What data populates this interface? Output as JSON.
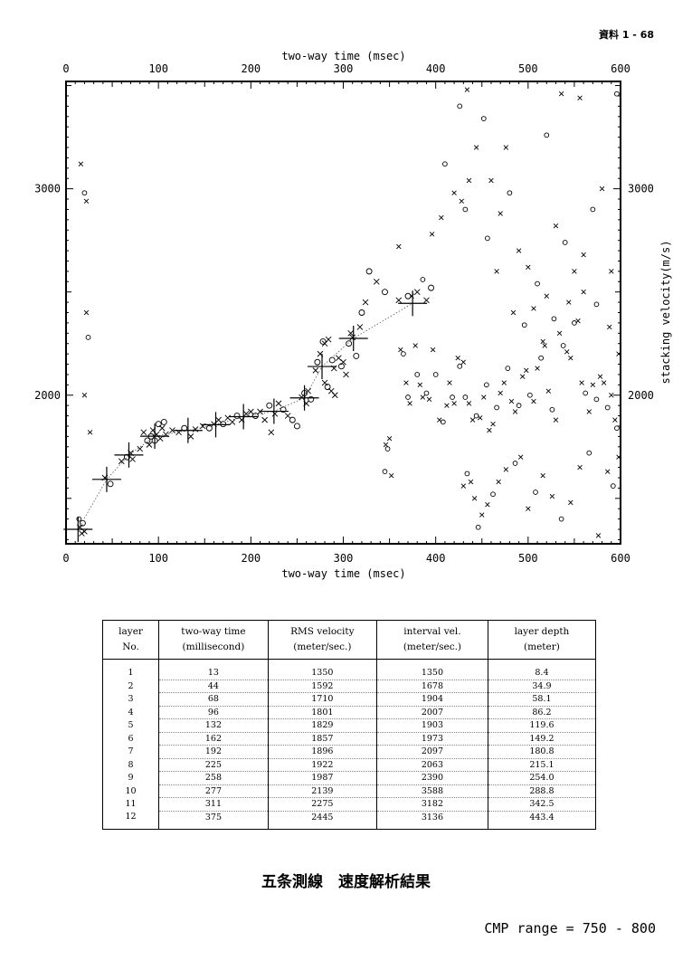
{
  "page_ref": "資料 1 - 68",
  "chart_data": {
    "type": "scatter",
    "top_xlabel": "two-way time (msec)",
    "xlabel": "two-way time (msec)",
    "ylabel": "stacking velocity(m/s)",
    "xlim": [
      0,
      600
    ],
    "ylim": [
      1280,
      3520
    ],
    "xticks": [
      0,
      100,
      200,
      300,
      400,
      500,
      600
    ],
    "yticks": [
      2000,
      3000
    ],
    "picks": [
      [
        13,
        1350
      ],
      [
        44,
        1592
      ],
      [
        68,
        1710
      ],
      [
        96,
        1801
      ],
      [
        132,
        1829
      ],
      [
        162,
        1857
      ],
      [
        192,
        1896
      ],
      [
        225,
        1922
      ],
      [
        258,
        1987
      ],
      [
        277,
        2139
      ],
      [
        311,
        2275
      ],
      [
        375,
        2445
      ]
    ],
    "main_trend_points": [
      [
        15,
        1360,
        "x"
      ],
      [
        17,
        1330,
        "x"
      ],
      [
        18,
        1380,
        "o"
      ],
      [
        20,
        1340,
        "x"
      ],
      [
        42,
        1600,
        "x"
      ],
      [
        48,
        1570,
        "o"
      ],
      [
        60,
        1680,
        "x"
      ],
      [
        66,
        1700,
        "o"
      ],
      [
        70,
        1720,
        "x"
      ],
      [
        72,
        1690,
        "x"
      ],
      [
        80,
        1740,
        "x"
      ],
      [
        84,
        1820,
        "x"
      ],
      [
        88,
        1780,
        "o"
      ],
      [
        90,
        1760,
        "x"
      ],
      [
        92,
        1800,
        "o"
      ],
      [
        94,
        1830,
        "x"
      ],
      [
        96,
        1780,
        "o"
      ],
      [
        98,
        1810,
        "x"
      ],
      [
        100,
        1860,
        "o"
      ],
      [
        102,
        1790,
        "x"
      ],
      [
        104,
        1840,
        "x"
      ],
      [
        106,
        1870,
        "o"
      ],
      [
        108,
        1810,
        "x"
      ],
      [
        115,
        1830,
        "x"
      ],
      [
        122,
        1820,
        "x"
      ],
      [
        128,
        1840,
        "o"
      ],
      [
        135,
        1800,
        "x"
      ],
      [
        140,
        1835,
        "x"
      ],
      [
        148,
        1850,
        "x"
      ],
      [
        155,
        1840,
        "o"
      ],
      [
        160,
        1860,
        "x"
      ],
      [
        165,
        1880,
        "x"
      ],
      [
        170,
        1860,
        "o"
      ],
      [
        175,
        1890,
        "x"
      ],
      [
        180,
        1870,
        "x"
      ],
      [
        185,
        1900,
        "o"
      ],
      [
        190,
        1880,
        "x"
      ],
      [
        195,
        1910,
        "x"
      ],
      [
        200,
        1920,
        "x"
      ],
      [
        205,
        1900,
        "o"
      ],
      [
        210,
        1920,
        "x"
      ],
      [
        215,
        1880,
        "x"
      ],
      [
        220,
        1950,
        "o"
      ],
      [
        222,
        1820,
        "x"
      ],
      [
        226,
        1910,
        "x"
      ],
      [
        230,
        1960,
        "x"
      ],
      [
        235,
        1930,
        "o"
      ],
      [
        240,
        1900,
        "x"
      ],
      [
        245,
        1880,
        "o"
      ],
      [
        250,
        1850,
        "o"
      ],
      [
        255,
        1990,
        "x"
      ],
      [
        258,
        2010,
        "o"
      ],
      [
        260,
        1960,
        "x"
      ],
      [
        262,
        2020,
        "x"
      ],
      [
        265,
        1980,
        "o"
      ],
      [
        270,
        2120,
        "x"
      ],
      [
        272,
        2160,
        "o"
      ],
      [
        275,
        2200,
        "x"
      ],
      [
        278,
        2260,
        "o"
      ],
      [
        280,
        2250,
        "x"
      ],
      [
        284,
        2270,
        "x"
      ],
      [
        288,
        2170,
        "o"
      ],
      [
        290,
        2130,
        "x"
      ],
      [
        295,
        2180,
        "x"
      ],
      [
        298,
        2140,
        "o"
      ],
      [
        300,
        2160,
        "x"
      ],
      [
        303,
        2100,
        "x"
      ],
      [
        306,
        2250,
        "o"
      ],
      [
        308,
        2300,
        "x"
      ],
      [
        310,
        2280,
        "x"
      ],
      [
        314,
        2190,
        "o"
      ],
      [
        318,
        2330,
        "x"
      ],
      [
        320,
        2400,
        "o"
      ],
      [
        324,
        2450,
        "x"
      ],
      [
        328,
        2600,
        "o"
      ],
      [
        336,
        2550,
        "x"
      ],
      [
        345,
        2500,
        "o"
      ],
      [
        360,
        2460,
        "x"
      ],
      [
        370,
        2480,
        "o"
      ],
      [
        380,
        2500,
        "x"
      ],
      [
        390,
        2460,
        "x"
      ],
      [
        395,
        2520,
        "o"
      ],
      [
        280,
        2060,
        "x"
      ],
      [
        283,
        2040,
        "o"
      ],
      [
        287,
        2020,
        "x"
      ],
      [
        291,
        2000,
        "x"
      ]
    ],
    "scatter_points": [
      [
        346,
        1760,
        "x"
      ],
      [
        348,
        1740,
        "o"
      ],
      [
        350,
        1790,
        "x"
      ],
      [
        345,
        1630,
        "o"
      ],
      [
        352,
        1610,
        "x"
      ],
      [
        362,
        2220,
        "x"
      ],
      [
        365,
        2200,
        "o"
      ],
      [
        368,
        2060,
        "x"
      ],
      [
        370,
        1990,
        "o"
      ],
      [
        372,
        1960,
        "x"
      ],
      [
        378,
        2240,
        "x"
      ],
      [
        380,
        2100,
        "o"
      ],
      [
        383,
        2050,
        "x"
      ],
      [
        386,
        1990,
        "x"
      ],
      [
        390,
        2010,
        "o"
      ],
      [
        393,
        1980,
        "x"
      ],
      [
        397,
        2220,
        "x"
      ],
      [
        400,
        2100,
        "o"
      ],
      [
        404,
        1880,
        "x"
      ],
      [
        408,
        1870,
        "o"
      ],
      [
        412,
        1950,
        "x"
      ],
      [
        415,
        2060,
        "x"
      ],
      [
        418,
        1990,
        "o"
      ],
      [
        420,
        1960,
        "x"
      ],
      [
        424,
        2180,
        "x"
      ],
      [
        426,
        2140,
        "o"
      ],
      [
        430,
        2160,
        "x"
      ],
      [
        432,
        1990,
        "o"
      ],
      [
        436,
        1960,
        "x"
      ],
      [
        440,
        1880,
        "x"
      ],
      [
        444,
        1900,
        "o"
      ],
      [
        448,
        1890,
        "x"
      ],
      [
        452,
        1990,
        "x"
      ],
      [
        455,
        2050,
        "o"
      ],
      [
        458,
        1830,
        "x"
      ],
      [
        462,
        1860,
        "x"
      ],
      [
        466,
        1940,
        "o"
      ],
      [
        470,
        2010,
        "x"
      ],
      [
        474,
        2060,
        "x"
      ],
      [
        478,
        2130,
        "o"
      ],
      [
        482,
        1970,
        "x"
      ],
      [
        486,
        1920,
        "x"
      ],
      [
        490,
        1950,
        "o"
      ],
      [
        494,
        2090,
        "x"
      ],
      [
        498,
        2120,
        "x"
      ],
      [
        502,
        2000,
        "o"
      ],
      [
        506,
        1970,
        "x"
      ],
      [
        510,
        2130,
        "x"
      ],
      [
        514,
        2180,
        "o"
      ],
      [
        518,
        2240,
        "x"
      ],
      [
        522,
        2020,
        "x"
      ],
      [
        526,
        1930,
        "o"
      ],
      [
        530,
        1880,
        "x"
      ],
      [
        534,
        2300,
        "x"
      ],
      [
        538,
        2240,
        "o"
      ],
      [
        542,
        2210,
        "x"
      ],
      [
        546,
        2180,
        "x"
      ],
      [
        550,
        2350,
        "o"
      ],
      [
        554,
        2360,
        "x"
      ],
      [
        558,
        2060,
        "x"
      ],
      [
        562,
        2010,
        "o"
      ],
      [
        566,
        1920,
        "x"
      ],
      [
        570,
        2050,
        "x"
      ],
      [
        574,
        1980,
        "o"
      ],
      [
        578,
        2090,
        "x"
      ],
      [
        582,
        2060,
        "x"
      ],
      [
        586,
        1940,
        "o"
      ],
      [
        590,
        2000,
        "x"
      ],
      [
        594,
        1880,
        "x"
      ],
      [
        596,
        1840,
        "o"
      ],
      [
        430,
        1560,
        "x"
      ],
      [
        434,
        1620,
        "o"
      ],
      [
        438,
        1580,
        "x"
      ],
      [
        442,
        1500,
        "x"
      ],
      [
        446,
        1360,
        "o"
      ],
      [
        450,
        1420,
        "x"
      ],
      [
        456,
        1470,
        "x"
      ],
      [
        462,
        1520,
        "o"
      ],
      [
        468,
        1580,
        "x"
      ],
      [
        476,
        1640,
        "x"
      ],
      [
        486,
        1670,
        "o"
      ],
      [
        492,
        1700,
        "x"
      ],
      [
        500,
        1450,
        "x"
      ],
      [
        508,
        1530,
        "o"
      ],
      [
        516,
        1610,
        "x"
      ],
      [
        526,
        1510,
        "x"
      ],
      [
        536,
        1400,
        "o"
      ],
      [
        546,
        1480,
        "x"
      ],
      [
        556,
        1650,
        "x"
      ],
      [
        566,
        1720,
        "o"
      ],
      [
        576,
        1320,
        "x"
      ],
      [
        586,
        1630,
        "x"
      ],
      [
        592,
        1560,
        "o"
      ],
      [
        598,
        1700,
        "x"
      ],
      [
        410,
        3120,
        "o"
      ],
      [
        420,
        2980,
        "x"
      ],
      [
        428,
        2940,
        "x"
      ],
      [
        432,
        2900,
        "o"
      ],
      [
        436,
        3040,
        "x"
      ],
      [
        444,
        3200,
        "x"
      ],
      [
        452,
        3340,
        "o"
      ],
      [
        460,
        3040,
        "x"
      ],
      [
        470,
        2880,
        "x"
      ],
      [
        480,
        2980,
        "o"
      ],
      [
        490,
        2700,
        "x"
      ],
      [
        500,
        2620,
        "x"
      ],
      [
        510,
        2540,
        "o"
      ],
      [
        520,
        2480,
        "x"
      ],
      [
        530,
        2820,
        "x"
      ],
      [
        540,
        2740,
        "o"
      ],
      [
        550,
        2600,
        "x"
      ],
      [
        560,
        2680,
        "x"
      ],
      [
        570,
        2900,
        "o"
      ],
      [
        580,
        3000,
        "x"
      ],
      [
        590,
        2600,
        "x"
      ],
      [
        596,
        3460,
        "o"
      ],
      [
        556,
        3440,
        "x"
      ],
      [
        536,
        3460,
        "x"
      ],
      [
        520,
        3260,
        "o"
      ],
      [
        476,
        3200,
        "x"
      ],
      [
        434,
        3480,
        "x"
      ],
      [
        426,
        3400,
        "o"
      ],
      [
        406,
        2860,
        "x"
      ],
      [
        396,
        2780,
        "x"
      ],
      [
        386,
        2560,
        "o"
      ],
      [
        374,
        2480,
        "x"
      ],
      [
        360,
        2720,
        "x"
      ],
      [
        456,
        2760,
        "o"
      ],
      [
        466,
        2600,
        "x"
      ],
      [
        484,
        2400,
        "x"
      ],
      [
        496,
        2340,
        "o"
      ],
      [
        506,
        2420,
        "x"
      ],
      [
        516,
        2260,
        "x"
      ],
      [
        528,
        2370,
        "o"
      ],
      [
        544,
        2450,
        "x"
      ],
      [
        560,
        2500,
        "x"
      ],
      [
        574,
        2440,
        "o"
      ],
      [
        588,
        2330,
        "x"
      ],
      [
        598,
        2200,
        "x"
      ],
      [
        16,
        3120,
        "x"
      ],
      [
        20,
        2980,
        "o"
      ],
      [
        22,
        2940,
        "x"
      ],
      [
        22,
        2400,
        "x"
      ],
      [
        24,
        2280,
        "o"
      ],
      [
        20,
        2000,
        "x"
      ],
      [
        26,
        1820,
        "x"
      ],
      [
        14,
        1400,
        "o"
      ]
    ]
  },
  "table": {
    "headers": [
      [
        "layer",
        "No."
      ],
      [
        "two-way time",
        "(millisecond)"
      ],
      [
        "RMS velocity",
        "(meter/sec.)"
      ],
      [
        "interval vel.",
        "(meter/sec.)"
      ],
      [
        "layer depth",
        "(meter)"
      ]
    ],
    "rows": [
      {
        "layer": "1",
        "time": "13",
        "rms": "1350",
        "interval": "1350",
        "depth": "8.4"
      },
      {
        "layer": "2",
        "time": "44",
        "rms": "1592",
        "interval": "1678",
        "depth": "34.9"
      },
      {
        "layer": "3",
        "time": "68",
        "rms": "1710",
        "interval": "1904",
        "depth": "58.1"
      },
      {
        "layer": "4",
        "time": "96",
        "rms": "1801",
        "interval": "2007",
        "depth": "86.2"
      },
      {
        "layer": "5",
        "time": "132",
        "rms": "1829",
        "interval": "1903",
        "depth": "119.6"
      },
      {
        "layer": "6",
        "time": "162",
        "rms": "1857",
        "interval": "1973",
        "depth": "149.2"
      },
      {
        "layer": "7",
        "time": "192",
        "rms": "1896",
        "interval": "2097",
        "depth": "180.8"
      },
      {
        "layer": "8",
        "time": "225",
        "rms": "1922",
        "interval": "2063",
        "depth": "215.1"
      },
      {
        "layer": "9",
        "time": "258",
        "rms": "1987",
        "interval": "2390",
        "depth": "254.0"
      },
      {
        "layer": "10",
        "time": "277",
        "rms": "2139",
        "interval": "3588",
        "depth": "288.8"
      },
      {
        "layer": "11",
        "time": "311",
        "rms": "2275",
        "interval": "3182",
        "depth": "342.5"
      },
      {
        "layer": "12",
        "time": "375",
        "rms": "2445",
        "interval": "3136",
        "depth": "443.4"
      }
    ]
  },
  "caption": "五条測線　速度解析結果",
  "cmp_range": "CMP range = 750 - 800"
}
